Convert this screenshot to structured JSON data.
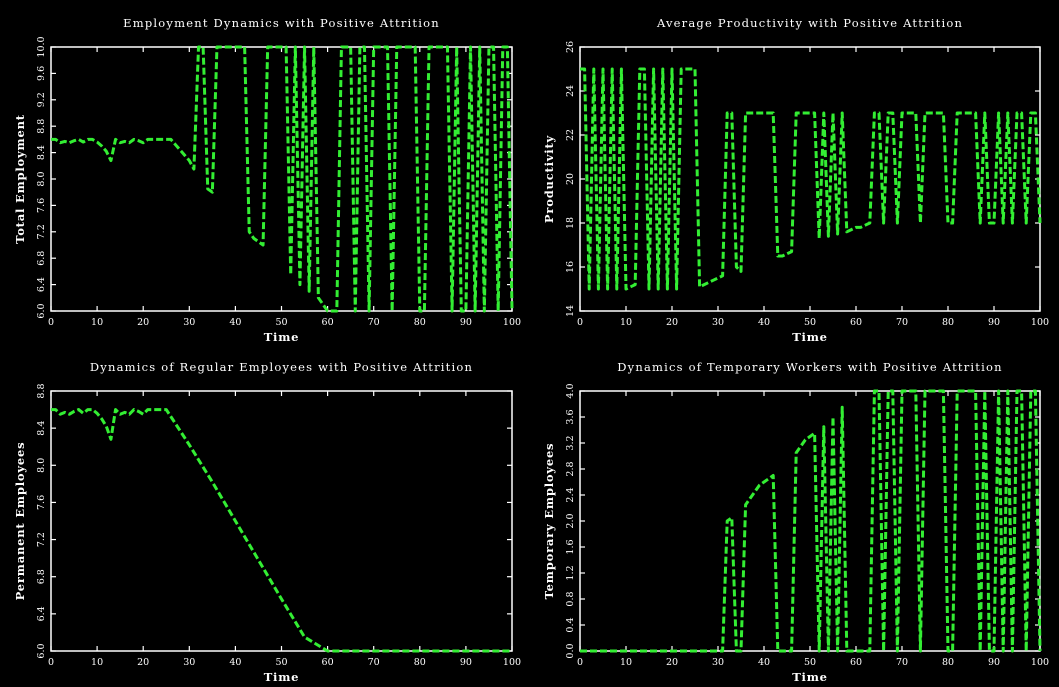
{
  "chart_data": [
    {
      "type": "line",
      "title": "Employment Dynamics with Positive Attrition",
      "xlabel": "Time",
      "ylabel": "Total Employment",
      "xlim": [
        0,
        100
      ],
      "ylim": [
        6.0,
        10.0
      ],
      "xticks": [
        0,
        10,
        20,
        30,
        40,
        50,
        60,
        70,
        80,
        90,
        100
      ],
      "xtick_labels": [
        "0",
        "10",
        "20",
        "30",
        "40",
        "50",
        "60",
        "70",
        "80",
        "90",
        "100"
      ],
      "yticks": [
        6.0,
        6.4,
        6.8,
        7.2,
        7.6,
        8.0,
        8.4,
        8.8,
        9.2,
        9.6,
        10.0
      ],
      "ytick_labels": [
        "6.0",
        "6.4",
        "6.8",
        "7.2",
        "7.6",
        "8.0",
        "8.4",
        "8.8",
        "9.2",
        "9.6",
        "10.0"
      ],
      "grid": false,
      "line_color": "#33ee33",
      "series": [
        {
          "x": [
            0,
            1,
            2,
            3,
            4,
            5,
            6,
            7,
            8,
            9,
            10,
            11,
            12,
            13,
            14,
            15,
            16,
            17,
            18,
            19,
            20,
            21,
            22,
            23,
            24,
            25,
            26,
            27,
            28,
            29,
            30,
            31,
            32,
            33,
            34,
            35,
            36,
            37,
            38,
            39,
            40,
            41,
            42,
            43,
            44,
            45,
            46,
            47,
            48,
            49,
            50,
            51,
            52,
            53,
            54,
            55,
            56,
            57,
            58,
            59,
            60,
            61,
            62,
            63,
            64,
            65,
            66,
            67,
            68,
            69,
            70,
            71,
            72,
            73,
            74,
            75,
            76,
            77,
            78,
            79,
            80,
            81,
            82,
            83,
            84,
            85,
            86,
            87,
            88,
            89,
            90,
            91,
            92,
            93,
            94,
            95,
            96,
            97,
            98,
            99,
            100
          ],
          "y": [
            8.6,
            8.6,
            8.55,
            8.57,
            8.55,
            8.58,
            8.6,
            8.56,
            8.6,
            8.6,
            8.56,
            8.5,
            8.42,
            8.28,
            8.6,
            8.55,
            8.57,
            8.55,
            8.6,
            8.58,
            8.55,
            8.6,
            8.6,
            8.6,
            8.6,
            8.6,
            8.6,
            8.52,
            8.44,
            8.36,
            8.28,
            8.15,
            10.0,
            10.0,
            7.85,
            7.8,
            10.0,
            10.0,
            10.0,
            10.0,
            10.0,
            10.0,
            10.0,
            7.2,
            7.1,
            7.05,
            7.0,
            10.0,
            10.0,
            10.0,
            10.0,
            10.0,
            6.55,
            10.0,
            6.4,
            10.0,
            6.3,
            10.0,
            6.2,
            6.1,
            6.0,
            6.0,
            6.0,
            10.0,
            10.0,
            10.0,
            6.0,
            10.0,
            10.0,
            6.0,
            10.0,
            10.0,
            10.0,
            10.0,
            6.0,
            10.0,
            10.0,
            10.0,
            10.0,
            10.0,
            6.0,
            6.0,
            10.0,
            10.0,
            10.0,
            10.0,
            10.0,
            6.0,
            10.0,
            6.0,
            6.0,
            10.0,
            6.0,
            10.0,
            6.0,
            10.0,
            10.0,
            6.0,
            10.0,
            10.0,
            6.0
          ]
        }
      ]
    },
    {
      "type": "line",
      "title": "Average Productivity with Positive Attrition",
      "xlabel": "Time",
      "ylabel": "Productivity",
      "xlim": [
        0,
        100
      ],
      "ylim": [
        14,
        26
      ],
      "xticks": [
        0,
        10,
        20,
        30,
        40,
        50,
        60,
        70,
        80,
        90,
        100
      ],
      "xtick_labels": [
        "0",
        "10",
        "20",
        "30",
        "40",
        "50",
        "60",
        "70",
        "80",
        "90",
        "100"
      ],
      "yticks": [
        14,
        16,
        18,
        20,
        22,
        24,
        26
      ],
      "ytick_labels": [
        "14",
        "16",
        "18",
        "20",
        "22",
        "24",
        "26"
      ],
      "grid": false,
      "line_color": "#33ee33",
      "series": [
        {
          "x": [
            0,
            1,
            2,
            3,
            4,
            5,
            6,
            7,
            8,
            9,
            10,
            11,
            12,
            13,
            14,
            15,
            16,
            17,
            18,
            19,
            20,
            21,
            22,
            23,
            24,
            25,
            26,
            27,
            28,
            29,
            30,
            31,
            32,
            33,
            34,
            35,
            36,
            37,
            38,
            39,
            40,
            41,
            42,
            43,
            44,
            45,
            46,
            47,
            48,
            49,
            50,
            51,
            52,
            53,
            54,
            55,
            56,
            57,
            58,
            59,
            60,
            61,
            62,
            63,
            64,
            65,
            66,
            67,
            68,
            69,
            70,
            71,
            72,
            73,
            74,
            75,
            76,
            77,
            78,
            79,
            80,
            81,
            82,
            83,
            84,
            85,
            86,
            87,
            88,
            89,
            90,
            91,
            92,
            93,
            94,
            95,
            96,
            97,
            98,
            99,
            100
          ],
          "y": [
            25,
            25,
            15,
            25,
            15,
            25,
            15,
            25,
            15,
            25,
            15,
            15.1,
            15.2,
            25,
            25,
            15,
            25,
            15,
            25,
            15,
            25,
            15,
            25,
            25,
            25,
            25,
            15.1,
            15.2,
            15.3,
            15.4,
            15.5,
            15.6,
            23,
            23,
            16,
            15.8,
            23,
            23,
            23,
            23,
            23,
            23,
            23,
            16.5,
            16.5,
            16.6,
            16.7,
            23,
            23,
            23,
            23,
            23,
            17.3,
            23,
            17.4,
            23,
            17.5,
            23,
            17.6,
            17.7,
            17.8,
            17.8,
            17.9,
            18,
            23,
            23,
            18,
            23,
            23,
            18,
            23,
            23,
            23,
            23,
            18,
            23,
            23,
            23,
            23,
            23,
            18,
            18,
            23,
            23,
            23,
            23,
            23,
            18,
            23,
            18,
            18,
            23,
            18,
            23,
            18,
            23,
            23,
            18,
            23,
            23,
            18
          ]
        }
      ]
    },
    {
      "type": "line",
      "title": "Dynamics of Regular Employees with Positive Attrition",
      "xlabel": "Time",
      "ylabel": "Permanent Employees",
      "xlim": [
        0,
        100
      ],
      "ylim": [
        6.0,
        8.8
      ],
      "xticks": [
        0,
        10,
        20,
        30,
        40,
        50,
        60,
        70,
        80,
        90,
        100
      ],
      "xtick_labels": [
        "0",
        "10",
        "20",
        "30",
        "40",
        "50",
        "60",
        "70",
        "80",
        "90",
        "100"
      ],
      "yticks": [
        6.0,
        6.4,
        6.8,
        7.2,
        7.6,
        8.0,
        8.4,
        8.8
      ],
      "ytick_labels": [
        "6.0",
        "6.4",
        "6.8",
        "7.2",
        "7.6",
        "8.0",
        "8.4",
        "8.8"
      ],
      "grid": false,
      "line_color": "#33ee33",
      "series": [
        {
          "x": [
            0,
            1,
            2,
            3,
            4,
            5,
            6,
            7,
            8,
            9,
            10,
            11,
            12,
            13,
            14,
            15,
            16,
            17,
            18,
            19,
            20,
            21,
            22,
            23,
            24,
            25,
            30,
            35,
            40,
            45,
            50,
            55,
            60,
            61,
            100
          ],
          "y": [
            8.6,
            8.6,
            8.55,
            8.57,
            8.55,
            8.58,
            8.6,
            8.56,
            8.6,
            8.6,
            8.56,
            8.5,
            8.42,
            8.28,
            8.6,
            8.55,
            8.57,
            8.55,
            8.6,
            8.58,
            8.55,
            8.6,
            8.6,
            8.6,
            8.6,
            8.6,
            8.22,
            7.82,
            7.4,
            6.98,
            6.56,
            6.15,
            6.0,
            6.0,
            6.0
          ]
        }
      ]
    },
    {
      "type": "line",
      "title": "Dynamics of Temporary Workers with Positive Attrition",
      "xlabel": "Time",
      "ylabel": "Temporary Employees",
      "xlim": [
        0,
        100
      ],
      "ylim": [
        0.0,
        4.0
      ],
      "xticks": [
        0,
        10,
        20,
        30,
        40,
        50,
        60,
        70,
        80,
        90,
        100
      ],
      "xtick_labels": [
        "0",
        "10",
        "20",
        "30",
        "40",
        "50",
        "60",
        "70",
        "80",
        "90",
        "100"
      ],
      "yticks": [
        0.0,
        0.4,
        0.8,
        1.2,
        1.6,
        2.0,
        2.4,
        2.8,
        3.2,
        3.6,
        4.0
      ],
      "ytick_labels": [
        "0.0",
        "0.4",
        "0.8",
        "1.2",
        "1.6",
        "2.0",
        "2.4",
        "2.8",
        "3.2",
        "3.6",
        "4.0"
      ],
      "grid": false,
      "line_color": "#33ee33",
      "series": [
        {
          "x": [
            0,
            10,
            20,
            30,
            31,
            32,
            33,
            34,
            35,
            36,
            37,
            38,
            39,
            40,
            41,
            42,
            43,
            44,
            45,
            46,
            47,
            48,
            49,
            50,
            51,
            52,
            53,
            54,
            55,
            56,
            57,
            58,
            59,
            60,
            61,
            62,
            63,
            64,
            65,
            66,
            67,
            68,
            69,
            70,
            71,
            72,
            73,
            74,
            75,
            76,
            77,
            78,
            79,
            80,
            81,
            82,
            83,
            84,
            85,
            86,
            87,
            88,
            89,
            90,
            91,
            92,
            93,
            94,
            95,
            96,
            97,
            98,
            99,
            100
          ],
          "y": [
            0,
            0,
            0,
            0,
            0,
            2.0,
            2.05,
            0,
            0,
            2.25,
            2.35,
            2.45,
            2.55,
            2.6,
            2.65,
            2.7,
            0,
            0,
            0,
            0,
            3.05,
            3.15,
            3.25,
            3.3,
            3.35,
            0,
            3.45,
            0,
            3.6,
            0,
            3.75,
            0,
            0,
            0,
            0,
            0,
            0,
            4.0,
            4.0,
            0,
            4.0,
            4.0,
            0,
            4.0,
            4.0,
            4.0,
            4.0,
            0,
            4.0,
            4.0,
            4.0,
            4.0,
            4.0,
            0,
            0,
            4.0,
            4.0,
            4.0,
            4.0,
            4.0,
            0,
            4.0,
            0,
            0,
            4.0,
            0,
            4.0,
            0,
            4.0,
            4.0,
            0,
            4.0,
            4.0,
            0
          ]
        }
      ]
    }
  ]
}
